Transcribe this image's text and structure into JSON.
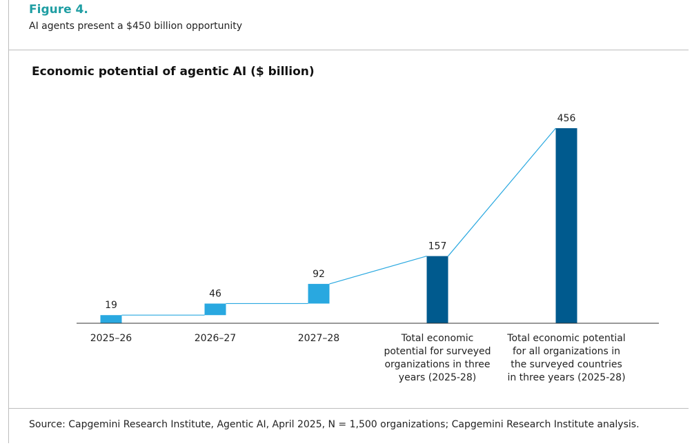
{
  "figure": {
    "label": "Figure 4.",
    "subtitle": "AI agents present a $450 billion opportunity"
  },
  "chart_data": {
    "type": "bar",
    "subtype": "waterfall",
    "title": "Economic potential of agentic AI ($ billion)",
    "categories": [
      [
        "2025–26"
      ],
      [
        "2026–27"
      ],
      [
        "2027–28"
      ],
      [
        "Total economic",
        "potential for surveyed",
        "organizations in three",
        "years (2025-28)"
      ],
      [
        "Total economic potential",
        "for all organizations in",
        "the surveyed countries",
        "in three years (2025-28)"
      ]
    ],
    "values": [
      19,
      46,
      92,
      157,
      456
    ],
    "labels": [
      "19",
      "46",
      "92",
      "157",
      "456"
    ],
    "bar_kinds": [
      "increment",
      "increment",
      "increment",
      "total",
      "total"
    ],
    "colors": {
      "increment": "#29a8e0",
      "total": "#005a8e",
      "connector": "#29a8e0",
      "axis": "#333333"
    },
    "xlabel": "",
    "ylabel": "",
    "ylim": [
      0,
      456
    ],
    "grid": false
  },
  "source": "Source: Capgemini Research Institute, Agentic AI, April 2025, N = 1,500 organizations; Capgemini Research Institute analysis."
}
